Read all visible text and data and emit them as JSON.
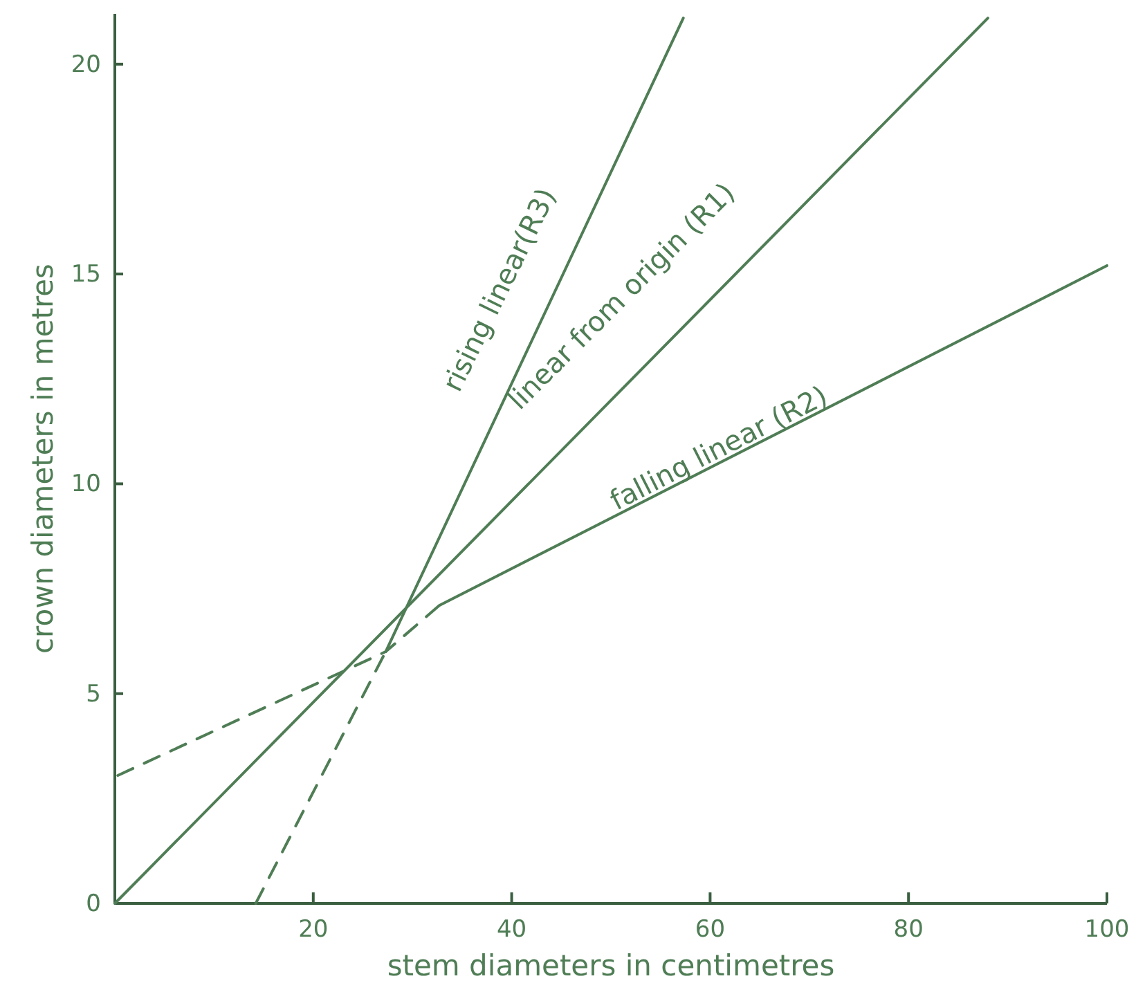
{
  "chart_data": {
    "type": "line",
    "xlabel": "stem diameters in centimetres",
    "ylabel": "crown diameters in metres",
    "xlim": [
      0,
      100
    ],
    "ylim": [
      0,
      21.2
    ],
    "xticks": [
      20,
      40,
      60,
      80,
      100
    ],
    "yticks": [
      0,
      5,
      10,
      15,
      20
    ],
    "series": [
      {
        "color": "#4f7d55",
        "line_style": "solid",
        "x": [
          0,
          88
        ],
        "values": [
          0,
          21.1
        ]
      },
      {
        "color": "#4f7d55",
        "line_style": "dashed",
        "x": [
          14.2,
          27.3
        ],
        "values": [
          0,
          6
        ]
      },
      {
        "color": "#4f7d55",
        "line_style": "solid",
        "x": [
          27.3,
          57.3
        ],
        "values": [
          6,
          21.1
        ]
      },
      {
        "color": "#4f7d55",
        "line_style": "dashed",
        "x": [
          0.3,
          27.3,
          32.7
        ],
        "values": [
          3.05,
          6,
          7.1
        ]
      },
      {
        "color": "#4f7d55",
        "line_style": "solid",
        "x": [
          32.7,
          100
        ],
        "values": [
          7.1,
          15.2
        ]
      }
    ],
    "annotations": [
      "rising linear(R3)",
      "linear from origin (R1)",
      "falling linear (R2)"
    ]
  }
}
